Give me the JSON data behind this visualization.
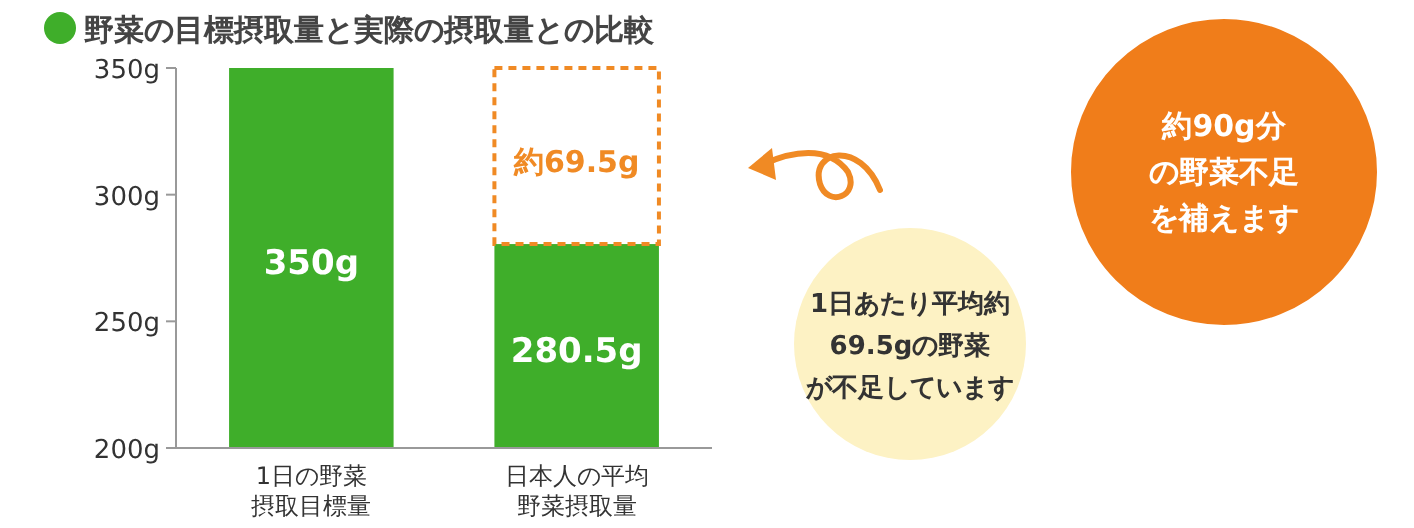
{
  "chart_data": {
    "type": "bar",
    "title": "野菜の目標摂取量と実際の摂取量との比較",
    "categories": [
      "1日の野菜摂取目標量",
      "日本人の平均野菜摂取量"
    ],
    "series": [
      {
        "color": "#3fae2a",
        "values": [
          350,
          280.5
        ],
        "value_labels": [
          "350g",
          "280.5g"
        ]
      },
      {
        "color": "#f08a24",
        "line_style": "dashed",
        "base": [
          null,
          280.5
        ],
        "values": [
          null,
          69.5
        ],
        "value_labels": [
          null,
          "約69.5g"
        ]
      }
    ],
    "ylim": [
      200,
      350
    ],
    "yticks": [
      {
        "value": 200,
        "label": "200g"
      },
      {
        "value": 250,
        "label": "250g"
      },
      {
        "value": 300,
        "label": "300g"
      },
      {
        "value": 350,
        "label": "350g"
      }
    ],
    "annotations": [
      "1日あたり平均約69.5gの野菜が不足しています",
      "約90g分の野菜不足を補えます"
    ]
  }
}
